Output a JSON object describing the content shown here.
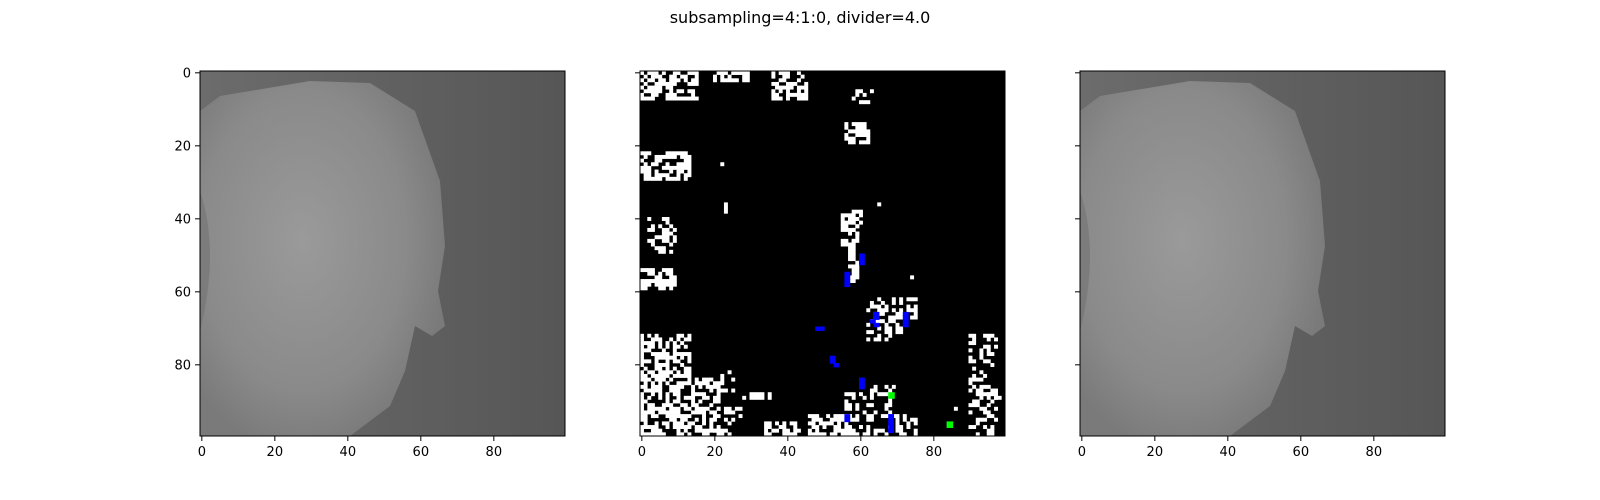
{
  "figure": {
    "title": "subsampling=4:1:0, divider=4.0"
  },
  "chart_data": [
    {
      "type": "heatmap",
      "name": "left-image",
      "image": "grayscale photo of a face (original)",
      "xlim": [
        0,
        99
      ],
      "ylim": [
        99,
        0
      ],
      "xticks": [
        "0",
        "20",
        "40",
        "60",
        "80"
      ],
      "yticks": [
        "0",
        "20",
        "40",
        "60",
        "80"
      ],
      "show_ytick_labels": true,
      "colors": {
        "face": "#8c8c8c",
        "background": "#5a5a5a",
        "shadow": "#6e6e6e"
      }
    },
    {
      "type": "heatmap",
      "name": "middle-difference-mask",
      "image": "binary difference mask: white pixels on black, with a few blue and green marked pixels",
      "xlim": [
        0,
        99
      ],
      "ylim": [
        99,
        0
      ],
      "xticks": [
        "0",
        "20",
        "40",
        "60",
        "80"
      ],
      "yticks": [
        "0",
        "20",
        "40",
        "60",
        "80"
      ],
      "show_ytick_labels": false,
      "colors": {
        "background": "#000000",
        "diff": "#ffffff",
        "blue": "#0000ff",
        "green": "#00ff00"
      },
      "blue_pixels": [
        [
          60,
          50
        ],
        [
          60,
          51
        ],
        [
          60,
          52
        ],
        [
          56,
          55
        ],
        [
          56,
          56
        ],
        [
          56,
          57
        ],
        [
          56,
          58
        ],
        [
          64,
          66
        ],
        [
          64,
          67
        ],
        [
          63,
          68
        ],
        [
          64,
          69
        ],
        [
          72,
          66
        ],
        [
          72,
          67
        ],
        [
          72,
          68
        ],
        [
          72,
          69
        ],
        [
          48,
          70
        ],
        [
          49,
          70
        ],
        [
          52,
          78
        ],
        [
          52,
          79
        ],
        [
          53,
          80
        ],
        [
          60,
          84
        ],
        [
          60,
          85
        ],
        [
          60,
          86
        ],
        [
          56,
          94
        ],
        [
          56,
          95
        ],
        [
          68,
          94
        ],
        [
          68,
          95
        ],
        [
          68,
          96
        ],
        [
          68,
          97
        ],
        [
          68,
          98
        ]
      ],
      "green_pixels": [
        [
          68,
          88
        ],
        [
          84,
          96
        ]
      ]
    },
    {
      "type": "heatmap",
      "name": "right-image",
      "image": "grayscale photo of a face (reconstructed)",
      "xlim": [
        0,
        99
      ],
      "ylim": [
        99,
        0
      ],
      "xticks": [
        "0",
        "20",
        "40",
        "60",
        "80"
      ],
      "yticks": [
        "0",
        "20",
        "40",
        "60",
        "80"
      ],
      "show_ytick_labels": false,
      "colors": {
        "face": "#8c8c8c",
        "background": "#5a5a5a",
        "shadow": "#6e6e6e"
      }
    }
  ]
}
